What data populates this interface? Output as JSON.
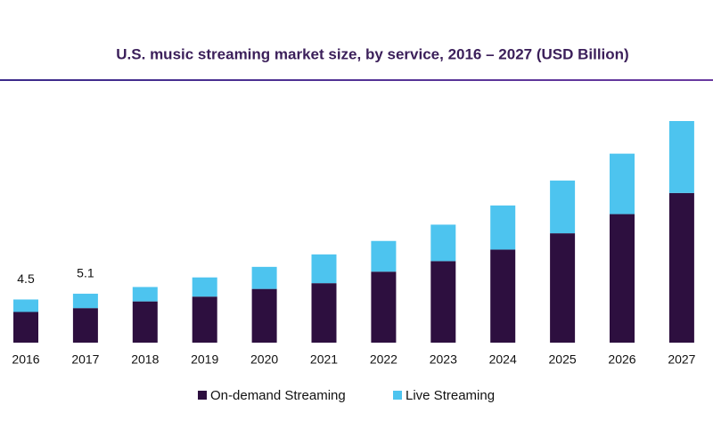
{
  "chart_data": {
    "type": "stacked-bar",
    "title": "U.S. music streaming market size, by service, 2016 – 2027 (USD Billion)",
    "categories": [
      "2016",
      "2017",
      "2018",
      "2019",
      "2020",
      "2021",
      "2022",
      "2023",
      "2024",
      "2025",
      "2026",
      "2027"
    ],
    "series": [
      {
        "name": "On-demand Streaming",
        "color": "#2d0f3f",
        "values": [
          3.2,
          3.6,
          4.3,
          4.8,
          5.6,
          6.2,
          7.4,
          8.5,
          9.7,
          11.4,
          13.4,
          15.6
        ]
      },
      {
        "name": "Live Streaming",
        "color": "#4dc4ef",
        "values": [
          1.3,
          1.5,
          1.5,
          2.0,
          2.3,
          3.0,
          3.2,
          3.8,
          4.6,
          5.5,
          6.3,
          7.5
        ]
      }
    ],
    "totals": [
      4.5,
      5.1,
      null,
      null,
      null,
      null,
      null,
      null,
      null,
      null,
      null,
      null
    ]
  }
}
